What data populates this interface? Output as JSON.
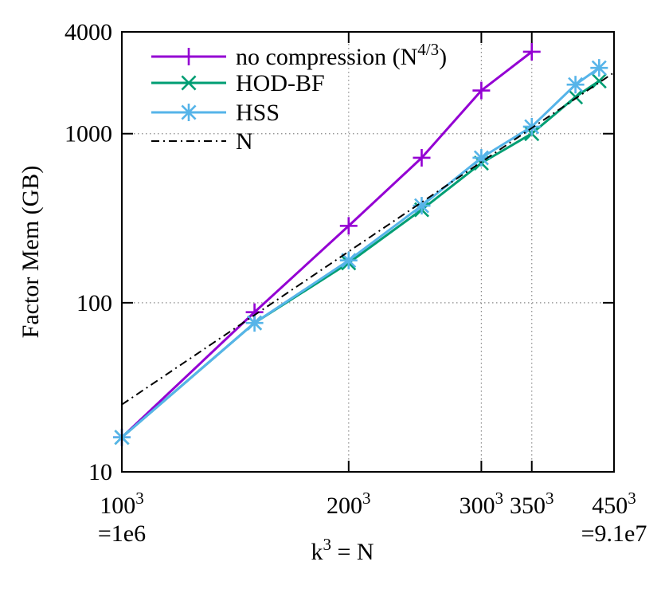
{
  "chart_data": {
    "type": "line",
    "title": "",
    "xlabel": "k",
    "xlabel_sup": "3",
    "xlabel_suffix": " = N",
    "ylabel": "Factor Mem (GB)",
    "xscale": "log",
    "yscale": "log",
    "xlim": [
      100,
      450
    ],
    "ylim": [
      10,
      4000
    ],
    "grid": true,
    "legend_position": "top-left",
    "x_ticks": [
      {
        "value": 100,
        "base": "100",
        "sup": "3",
        "sub": "=1e6"
      },
      {
        "value": 200,
        "base": "200",
        "sup": "3",
        "sub": ""
      },
      {
        "value": 300,
        "base": "300",
        "sup": "3",
        "sub": ""
      },
      {
        "value": 350,
        "base": "350",
        "sup": "3",
        "sub": ""
      },
      {
        "value": 450,
        "base": "450",
        "sup": "3",
        "sub": "=9.1e7"
      }
    ],
    "y_ticks": [
      {
        "value": 10,
        "label": "10"
      },
      {
        "value": 100,
        "label": "100"
      },
      {
        "value": 1000,
        "label": "1000"
      },
      {
        "value": 4000,
        "label": "4000"
      }
    ],
    "series": [
      {
        "name": "no compression (N",
        "name_sup": "4/3",
        "name_suffix": ")",
        "color": "#9400d3",
        "marker": "plus",
        "line": "solid",
        "x": [
          100,
          150,
          200,
          250,
          300,
          350
        ],
        "y": [
          16,
          88,
          285,
          720,
          1800,
          3050
        ]
      },
      {
        "name": "HOD-BF",
        "name_sup": "",
        "name_suffix": "",
        "color": "#009e73",
        "marker": "x",
        "line": "solid",
        "x": [
          100,
          150,
          200,
          250,
          300,
          350,
          400,
          430
        ],
        "y": [
          16,
          76,
          172,
          355,
          670,
          1000,
          1650,
          2050
        ]
      },
      {
        "name": "HSS",
        "name_sup": "",
        "name_suffix": "",
        "color": "#56b4e9",
        "marker": "star",
        "line": "solid",
        "x": [
          100,
          150,
          200,
          250,
          300,
          350,
          400,
          430
        ],
        "y": [
          16,
          76,
          178,
          375,
          720,
          1100,
          1950,
          2450
        ]
      },
      {
        "name": "N",
        "name_sup": "",
        "name_suffix": "",
        "color": "#000000",
        "marker": "none",
        "line": "dashdot",
        "x": [
          100,
          450
        ],
        "y": [
          25,
          2300
        ]
      }
    ]
  }
}
